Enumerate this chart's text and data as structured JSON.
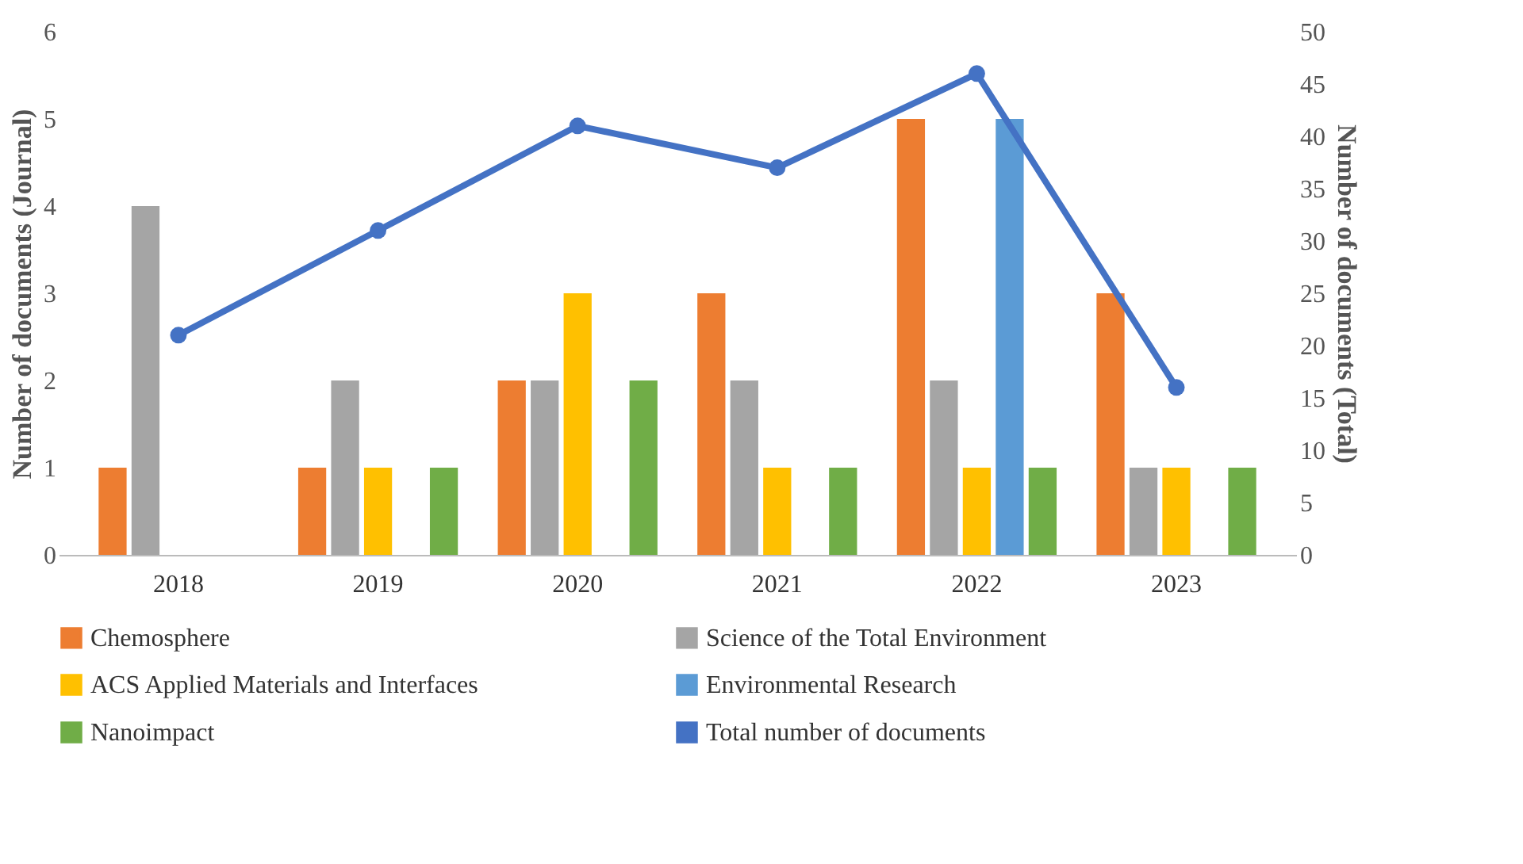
{
  "chart_data": {
    "type": "bar",
    "categories": [
      "2018",
      "2019",
      "2020",
      "2021",
      "2022",
      "2023"
    ],
    "ylabel": "Number of documents (Journal)",
    "y2label": "Number of documents (Total)",
    "ylim": [
      0,
      6
    ],
    "yticks": [
      0,
      1,
      2,
      3,
      4,
      5,
      6
    ],
    "y2lim": [
      0,
      50
    ],
    "y2ticks": [
      0,
      5,
      10,
      15,
      20,
      25,
      30,
      35,
      40,
      45,
      50
    ],
    "grid": false,
    "legend": "bottom",
    "series": [
      {
        "name": "Chemosphere",
        "color": "#ed7d31",
        "values": [
          1,
          1,
          2,
          3,
          5,
          3
        ]
      },
      {
        "name": "Science of the Total Environment",
        "color": "#a5a5a5",
        "values": [
          4,
          2,
          2,
          2,
          2,
          1
        ]
      },
      {
        "name": "ACS Applied Materials and Interfaces",
        "color": "#ffc000",
        "values": [
          0,
          1,
          3,
          1,
          1,
          1
        ]
      },
      {
        "name": "Environmental Research",
        "color": "#5b9bd5",
        "values": [
          0,
          0,
          0,
          0,
          5,
          0
        ]
      },
      {
        "name": "Nanoimpact",
        "color": "#70ad47",
        "values": [
          0,
          1,
          2,
          1,
          1,
          1
        ]
      },
      {
        "name": "Total number of documents",
        "color": "#4472c4",
        "type": "line",
        "axis": "y2",
        "marker": "circle",
        "values": [
          21,
          31,
          41,
          37,
          46,
          16
        ]
      }
    ]
  }
}
